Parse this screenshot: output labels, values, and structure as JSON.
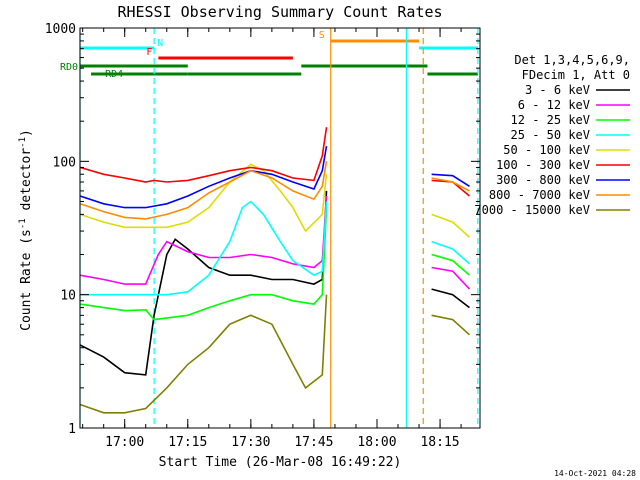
{
  "chart_data": {
    "type": "line",
    "title": "RHESSI Observing Summary Count Rates",
    "xlabel": "Start Time (26-Mar-08 16:49:22)",
    "ylabel": "Count Rate (s",
    "ylabel_sup": "-1",
    "ylabel_tail": " detector",
    "ylabel_close": ")",
    "y_scale": "log",
    "ylim": [
      1,
      1000
    ],
    "x_range_minutes": [
      "16:49:22",
      "18:24:30"
    ],
    "x_ticks": [
      {
        "t": "17:00",
        "label": "17:00"
      },
      {
        "t": "17:15",
        "label": "17:15"
      },
      {
        "t": "17:30",
        "label": "17:30"
      },
      {
        "t": "17:45",
        "label": "17:45"
      },
      {
        "t": "18:00",
        "label": "18:00"
      },
      {
        "t": "18:15",
        "label": "18:15"
      }
    ],
    "y_ticks": [
      {
        "v": 1,
        "label": "1"
      },
      {
        "v": 10,
        "label": "10"
      },
      {
        "v": 100,
        "label": "100"
      },
      {
        "v": 1000,
        "label": "1000"
      }
    ],
    "legend_header": [
      "Det 1,3,4,5,6,9,",
      "FDecim 1, Att 0"
    ],
    "legend_position": "right",
    "series": [
      {
        "name": "3 - 6 keV",
        "color": "#000000",
        "points": [
          [
            "16:49:22",
            4.2
          ],
          [
            "16:55",
            3.4
          ],
          [
            "17:00",
            2.6
          ],
          [
            "17:05",
            2.5
          ],
          [
            "17:07",
            7
          ],
          [
            "17:10",
            20
          ],
          [
            "17:12",
            26
          ],
          [
            "17:15",
            22
          ],
          [
            "17:20",
            16
          ],
          [
            "17:25",
            14
          ],
          [
            "17:30",
            14
          ],
          [
            "17:35",
            13
          ],
          [
            "17:40",
            13
          ],
          [
            "17:45",
            12
          ],
          [
            "17:47",
            13
          ],
          [
            "17:48",
            60
          ]
        ]
      },
      {
        "name": "6 - 12 keV",
        "color": "#ff00ff",
        "points": [
          [
            "16:49:22",
            14
          ],
          [
            "16:55",
            13
          ],
          [
            "17:00",
            12
          ],
          [
            "17:05",
            12
          ],
          [
            "17:08",
            20
          ],
          [
            "17:10",
            25
          ],
          [
            "17:15",
            21
          ],
          [
            "17:20",
            19
          ],
          [
            "17:25",
            19
          ],
          [
            "17:30",
            20
          ],
          [
            "17:35",
            19
          ],
          [
            "17:40",
            17
          ],
          [
            "17:45",
            16
          ],
          [
            "17:47",
            18
          ],
          [
            "17:48",
            55
          ]
        ]
      },
      {
        "name": "12 - 25 keV",
        "color": "#00ff00",
        "points": [
          [
            "16:49:22",
            8.5
          ],
          [
            "16:55",
            8
          ],
          [
            "17:00",
            7.6
          ],
          [
            "17:05",
            7.7
          ],
          [
            "17:07",
            6.5
          ],
          [
            "17:15",
            7
          ],
          [
            "17:20",
            8
          ],
          [
            "17:25",
            9
          ],
          [
            "17:30",
            10
          ],
          [
            "17:35",
            10
          ],
          [
            "17:40",
            9
          ],
          [
            "17:45",
            8.5
          ],
          [
            "17:47",
            10
          ],
          [
            "17:48",
            45
          ]
        ]
      },
      {
        "name": "25 - 50 keV",
        "color": "#00ffff",
        "points": [
          [
            "16:49:22",
            10
          ],
          [
            "16:55",
            10
          ],
          [
            "17:00",
            10
          ],
          [
            "17:05",
            10
          ],
          [
            "17:10",
            10
          ],
          [
            "17:15",
            10.5
          ],
          [
            "17:20",
            14
          ],
          [
            "17:25",
            25
          ],
          [
            "17:28",
            45
          ],
          [
            "17:30",
            50
          ],
          [
            "17:33",
            40
          ],
          [
            "17:37",
            25
          ],
          [
            "17:40",
            18
          ],
          [
            "17:45",
            14
          ],
          [
            "17:47",
            15
          ],
          [
            "17:48",
            50
          ]
        ]
      },
      {
        "name": "50 - 100 keV",
        "color": "#dddd00",
        "points": [
          [
            "16:49:22",
            40
          ],
          [
            "16:55",
            35
          ],
          [
            "17:00",
            32
          ],
          [
            "17:05",
            32
          ],
          [
            "17:10",
            32
          ],
          [
            "17:15",
            35
          ],
          [
            "17:20",
            45
          ],
          [
            "17:25",
            70
          ],
          [
            "17:30",
            95
          ],
          [
            "17:33",
            85
          ],
          [
            "17:37",
            60
          ],
          [
            "17:40",
            45
          ],
          [
            "17:43",
            30
          ],
          [
            "17:47",
            40
          ],
          [
            "17:48",
            80
          ]
        ]
      },
      {
        "name": "100 - 300 keV",
        "color": "#ff0000",
        "points": [
          [
            "16:49:22",
            90
          ],
          [
            "16:55",
            80
          ],
          [
            "17:00",
            75
          ],
          [
            "17:05",
            70
          ],
          [
            "17:07",
            72
          ],
          [
            "17:10",
            70
          ],
          [
            "17:15",
            72
          ],
          [
            "17:20",
            78
          ],
          [
            "17:25",
            85
          ],
          [
            "17:30",
            90
          ],
          [
            "17:35",
            85
          ],
          [
            "17:40",
            75
          ],
          [
            "17:45",
            72
          ],
          [
            "17:47",
            110
          ],
          [
            "17:48",
            180
          ]
        ]
      },
      {
        "name": "300 - 800 keV",
        "color": "#0000ff",
        "points": [
          [
            "16:49:22",
            55
          ],
          [
            "16:55",
            48
          ],
          [
            "17:00",
            45
          ],
          [
            "17:05",
            45
          ],
          [
            "17:10",
            48
          ],
          [
            "17:15",
            55
          ],
          [
            "17:20",
            65
          ],
          [
            "17:25",
            75
          ],
          [
            "17:30",
            85
          ],
          [
            "17:35",
            80
          ],
          [
            "17:40",
            70
          ],
          [
            "17:45",
            62
          ],
          [
            "17:47",
            85
          ],
          [
            "17:48",
            130
          ]
        ]
      },
      {
        "name": "800 - 7000 keV",
        "color": "#ff8c00",
        "points": [
          [
            "16:49:22",
            48
          ],
          [
            "16:55",
            42
          ],
          [
            "17:00",
            38
          ],
          [
            "17:05",
            37
          ],
          [
            "17:10",
            40
          ],
          [
            "17:15",
            45
          ],
          [
            "17:20",
            58
          ],
          [
            "17:25",
            70
          ],
          [
            "17:30",
            85
          ],
          [
            "17:35",
            75
          ],
          [
            "17:40",
            60
          ],
          [
            "17:45",
            52
          ],
          [
            "17:47",
            65
          ],
          [
            "17:48",
            100
          ]
        ]
      },
      {
        "name": "7000 - 15000 keV",
        "color": "#808000",
        "points": [
          [
            "16:49:22",
            1.5
          ],
          [
            "16:55",
            1.3
          ],
          [
            "17:00",
            1.3
          ],
          [
            "17:05",
            1.4
          ],
          [
            "17:10",
            2
          ],
          [
            "17:15",
            3
          ],
          [
            "17:20",
            4
          ],
          [
            "17:25",
            6
          ],
          [
            "17:30",
            7
          ],
          [
            "17:35",
            6
          ],
          [
            "17:40",
            3
          ],
          [
            "17:43",
            2
          ],
          [
            "17:47",
            2.5
          ],
          [
            "17:48",
            10
          ]
        ]
      }
    ],
    "series_after_gap": [
      {
        "name": "3 - 6 keV",
        "points": [
          [
            "18:13",
            11
          ],
          [
            "18:18",
            10
          ],
          [
            "18:22",
            8
          ]
        ]
      },
      {
        "name": "6 - 12 keV",
        "points": [
          [
            "18:13",
            16
          ],
          [
            "18:18",
            15
          ],
          [
            "18:22",
            11
          ]
        ]
      },
      {
        "name": "12 - 25 keV",
        "points": [
          [
            "18:13",
            20
          ],
          [
            "18:18",
            18
          ],
          [
            "18:22",
            14
          ]
        ]
      },
      {
        "name": "25 - 50 keV",
        "points": [
          [
            "18:13",
            25
          ],
          [
            "18:18",
            22
          ],
          [
            "18:22",
            17
          ]
        ]
      },
      {
        "name": "50 - 100 keV",
        "points": [
          [
            "18:13",
            40
          ],
          [
            "18:18",
            35
          ],
          [
            "18:22",
            27
          ]
        ]
      },
      {
        "name": "100 - 300 keV",
        "points": [
          [
            "18:13",
            72
          ],
          [
            "18:18",
            70
          ],
          [
            "18:22",
            55
          ]
        ]
      },
      {
        "name": "300 - 800 keV",
        "points": [
          [
            "18:13",
            80
          ],
          [
            "18:18",
            78
          ],
          [
            "18:22",
            65
          ]
        ]
      },
      {
        "name": "800 - 7000 keV",
        "points": [
          [
            "18:13",
            75
          ],
          [
            "18:18",
            70
          ],
          [
            "18:22",
            60
          ]
        ]
      },
      {
        "name": "7000 - 15000 keV",
        "points": [
          [
            "18:13",
            7
          ],
          [
            "18:18",
            6.5
          ],
          [
            "18:22",
            5
          ]
        ]
      }
    ],
    "bars": [
      {
        "label": "N",
        "color": "#00ffff",
        "row": 1,
        "segments": [
          [
            "16:49:22",
            "17:07:00"
          ],
          [
            "18:10:00",
            "18:24:00"
          ]
        ]
      },
      {
        "label": "F",
        "color": "#ff0000",
        "row": 2,
        "segments": [
          [
            "17:08:00",
            "17:40:00"
          ]
        ]
      },
      {
        "label": "S",
        "color": "#ff8c00",
        "row": 0,
        "segments": [
          [
            "17:49:00",
            "18:10:00"
          ]
        ]
      },
      {
        "label": "RD0",
        "color": "#008000",
        "row": 3,
        "segments": [
          [
            "16:49:22",
            "17:15:00"
          ],
          [
            "17:42:00",
            "18:12:00"
          ]
        ]
      },
      {
        "label": "RD4",
        "color": "#008000",
        "row": 4,
        "segments": [
          [
            "16:52:00",
            "17:15:00"
          ],
          [
            "17:15:00",
            "17:42:00"
          ],
          [
            "18:12:00",
            "18:24:00"
          ]
        ]
      }
    ],
    "vlines": [
      {
        "t": "16:49:22",
        "color": "#00ffff",
        "style": "solid"
      },
      {
        "t": "17:07:00",
        "color": "#00ffff",
        "style": "dashed"
      },
      {
        "t": "17:49:00",
        "color": "#ff8c00",
        "style": "solid"
      },
      {
        "t": "18:07:00",
        "color": "#00ffff",
        "style": "solid"
      },
      {
        "t": "18:11:00",
        "color": "#ff8c00",
        "style": "dashed"
      },
      {
        "t": "18:24:00",
        "color": "#00ffff",
        "style": "dashed"
      }
    ],
    "grid": false,
    "footer_stamp": "14-Oct-2021 04:28"
  }
}
